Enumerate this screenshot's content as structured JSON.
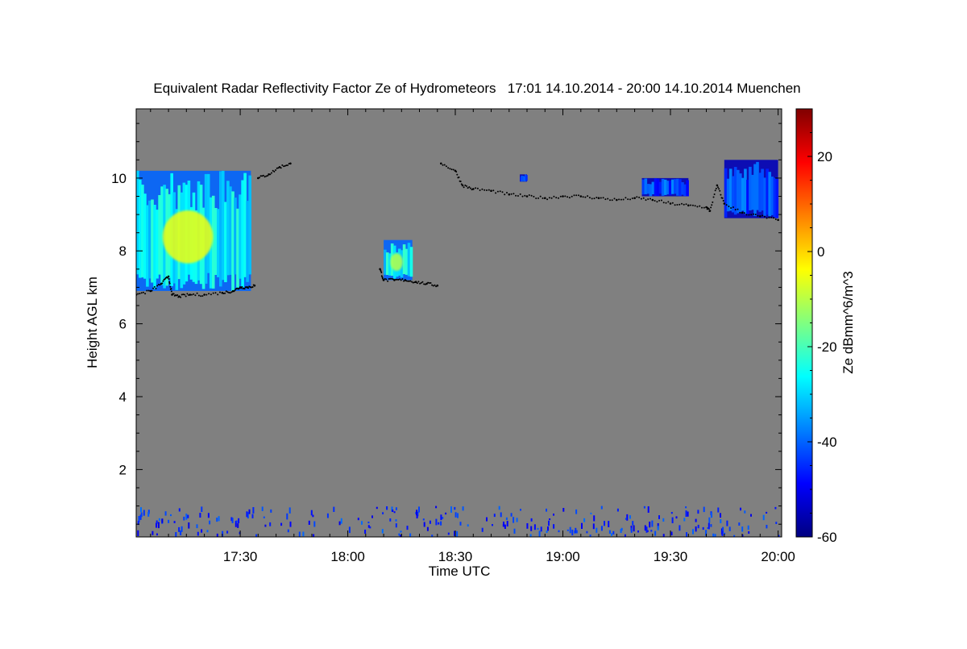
{
  "chart_data": {
    "type": "heatmap",
    "title": "Equivalent Radar Reflectivity Factor Ze of Hydrometeors   17:01 14.10.2014 - 20:00 14.10.2014 Muenchen",
    "xlabel": "Time UTC",
    "ylabel": "Height AGL km",
    "colorbar_label": "Ze dBmm^6/m^3",
    "x_tick_labels": [
      "17:30",
      "18:00",
      "18:30",
      "19:00",
      "19:30",
      "20:00"
    ],
    "x_tick_minutes": [
      1050,
      1080,
      1110,
      1140,
      1170,
      1200
    ],
    "xlim_minutes": [
      1021,
      1201
    ],
    "y_tick_labels": [
      "2",
      "4",
      "6",
      "8",
      "10"
    ],
    "y_ticks": [
      2,
      4,
      6,
      8,
      10
    ],
    "ylim": [
      0.15,
      11.9
    ],
    "colorbar_tick_labels": [
      "20",
      "0",
      "-20",
      "-40",
      "-60"
    ],
    "colorbar_ticks": [
      20,
      0,
      -20,
      -40,
      -60
    ],
    "colorbar_range": [
      -60,
      30
    ],
    "background_color": "#808080",
    "colormap": [
      "#000080",
      "#0000ff",
      "#0080ff",
      "#00ffff",
      "#80ff80",
      "#ffff00",
      "#ff8000",
      "#ff0000",
      "#800000"
    ],
    "echo_regions": [
      {
        "time": [
          1021,
          1053
        ],
        "height": [
          6.9,
          10.2
        ],
        "ze_typical": -30,
        "ze_max": -5
      },
      {
        "time": [
          1090,
          1098
        ],
        "height": [
          7.2,
          8.3
        ],
        "ze_typical": -30,
        "ze_max": -10
      },
      {
        "time": [
          1128,
          1130
        ],
        "height": [
          9.9,
          10.1
        ],
        "ze_typical": -45
      },
      {
        "time": [
          1162,
          1175
        ],
        "height": [
          9.5,
          10.0
        ],
        "ze_typical": -45
      },
      {
        "time": [
          1185,
          1200
        ],
        "height": [
          8.9,
          10.5
        ],
        "ze_typical": -45
      },
      {
        "time": [
          1021,
          1200
        ],
        "height": [
          0.2,
          1.0
        ],
        "ze_typical": -45,
        "note_type": "clutter"
      }
    ],
    "cloud_base_series": {
      "time": [
        1021,
        1025,
        1028,
        1030,
        1031,
        1033,
        1036,
        1040,
        1045,
        1048,
        1050,
        1052,
        1054,
        1055,
        1058,
        1061,
        1064,
        1089,
        1090,
        1093,
        1096,
        1099,
        1102,
        1105,
        1106,
        1110,
        1112,
        1115,
        1120,
        1125,
        1130,
        1135,
        1140,
        1145,
        1150,
        1155,
        1160,
        1165,
        1170,
        1175,
        1180,
        1181,
        1183,
        1185,
        1190,
        1195,
        1200
      ],
      "height": [
        6.8,
        6.9,
        7.1,
        7.3,
        6.8,
        6.75,
        6.8,
        6.8,
        6.85,
        6.9,
        7.0,
        7.0,
        7.05,
        10.0,
        10.1,
        10.3,
        10.4,
        7.5,
        7.2,
        7.2,
        7.2,
        7.15,
        7.1,
        7.05,
        10.4,
        10.2,
        9.8,
        9.7,
        9.65,
        9.55,
        9.5,
        9.45,
        9.5,
        9.5,
        9.45,
        9.4,
        9.45,
        9.4,
        9.3,
        9.25,
        9.2,
        9.1,
        9.8,
        9.3,
        9.05,
        8.95,
        8.85
      ]
    }
  }
}
